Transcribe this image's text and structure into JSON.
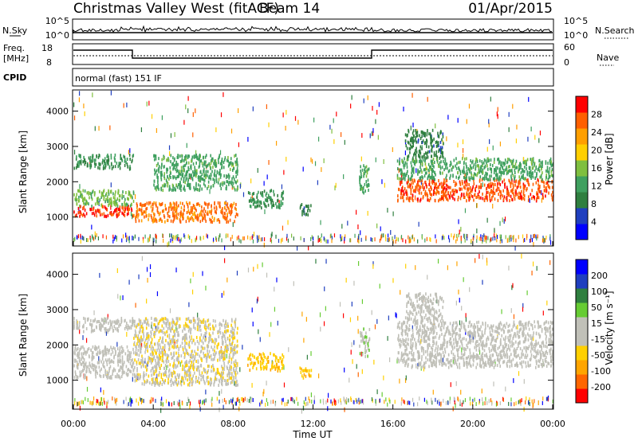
{
  "header": {
    "station": "Christmas Valley West (fitACF)",
    "beam": "Beam 14",
    "date": "01/Apr/2015"
  },
  "top_panels": {
    "nsky_label": "N.Sky",
    "nsearch_label": "N.Search",
    "nsky_ticks": [
      "10^5",
      "10^0"
    ],
    "nsearch_ticks": [
      "10^5",
      "10^0"
    ],
    "freq_label_line1": "Freq.",
    "freq_label_line2": "[MHz]",
    "freq_ticks": [
      "18",
      "8"
    ],
    "nave_label": "Nave",
    "nave_ticks": [
      "60",
      "0"
    ],
    "cpid_label": "CPID",
    "cpid_text": "normal (fast) 151 IF"
  },
  "colors": {
    "power_scale": [
      "#0000ff",
      "#1f3fbf",
      "#2f7f3f",
      "#3fa05f",
      "#7fbf3f",
      "#ffcf00",
      "#ff9f00",
      "#ff5f00",
      "#ff0000"
    ],
    "velocity_scale": [
      "#ff0000",
      "#ff6600",
      "#ffa500",
      "#ffd000",
      "#c0c0b8",
      "#c0c0b8",
      "#66cc33",
      "#2f7f3f",
      "#1f3fbf",
      "#0000ff"
    ]
  },
  "chart_data": [
    {
      "type": "heatmap",
      "panel": "power",
      "ylabel": "Slant Range [km]",
      "xlabel": "",
      "yticks": [
        "1000",
        "2000",
        "3000",
        "4000"
      ],
      "ylim": [
        180,
        4600
      ],
      "xlim": [
        0,
        24
      ],
      "colorbar_label": "Power [dB]",
      "colorbar_ticks": [
        "28",
        "24",
        "20",
        "16",
        "12",
        "8",
        "4"
      ],
      "color_range": [
        0,
        30
      ],
      "bands": [
        {
          "t": [
            0,
            3
          ],
          "r": [
            1050,
            1350
          ],
          "level": 27
        },
        {
          "t": [
            0,
            3
          ],
          "r": [
            1350,
            1800
          ],
          "level": 14
        },
        {
          "t": [
            0,
            3
          ],
          "r": [
            2400,
            2800
          ],
          "level": 10
        },
        {
          "t": [
            3,
            8.2
          ],
          "r": [
            900,
            1450
          ],
          "level": 24
        },
        {
          "t": [
            4,
            8.2
          ],
          "r": [
            1800,
            2800
          ],
          "level": 12
        },
        {
          "t": [
            8.7,
            10.5
          ],
          "r": [
            1300,
            1800
          ],
          "level": 10
        },
        {
          "t": [
            11.3,
            11.9
          ],
          "r": [
            1100,
            1400
          ],
          "level": 8
        },
        {
          "t": [
            14.3,
            14.8
          ],
          "r": [
            1700,
            2500
          ],
          "level": 12
        },
        {
          "t": [
            16.2,
            24
          ],
          "r": [
            1500,
            2100
          ],
          "level": 26
        },
        {
          "t": [
            16.2,
            24
          ],
          "r": [
            2100,
            2700
          ],
          "level": 12
        },
        {
          "t": [
            16.6,
            18.5
          ],
          "r": [
            2700,
            3500
          ],
          "level": 8
        }
      ]
    },
    {
      "type": "heatmap",
      "panel": "velocity",
      "ylabel": "Slant Range [km]",
      "xlabel": "Time UT",
      "xticks": [
        "00:00",
        "04:00",
        "08:00",
        "12:00",
        "16:00",
        "20:00",
        "00:00"
      ],
      "yticks": [
        "1000",
        "2000",
        "3000",
        "4000"
      ],
      "ylim": [
        180,
        4600
      ],
      "xlim": [
        0,
        24
      ],
      "colorbar_label": "Velocity [m s⁻¹]",
      "colorbar_ticks": [
        "200",
        "100",
        "50",
        "15",
        "-15",
        "-50",
        "-100",
        "-200"
      ],
      "color_range": [
        -250,
        250
      ],
      "bands": [
        {
          "t": [
            0,
            3
          ],
          "r": [
            1100,
            2000
          ],
          "level": 0
        },
        {
          "t": [
            0,
            3
          ],
          "r": [
            2400,
            2800
          ],
          "level": 0
        },
        {
          "t": [
            3,
            8.2
          ],
          "r": [
            900,
            2800
          ],
          "level": -40
        },
        {
          "t": [
            8.7,
            10.5
          ],
          "r": [
            1300,
            1800
          ],
          "level": -90
        },
        {
          "t": [
            11.3,
            11.9
          ],
          "r": [
            1100,
            1400
          ],
          "level": -90
        },
        {
          "t": [
            14.3,
            14.8
          ],
          "r": [
            1700,
            2500
          ],
          "level": 40
        },
        {
          "t": [
            16.2,
            24
          ],
          "r": [
            1400,
            2700
          ],
          "level": 0
        },
        {
          "t": [
            16.6,
            18.5
          ],
          "r": [
            2700,
            3500
          ],
          "level": 0
        }
      ]
    }
  ]
}
